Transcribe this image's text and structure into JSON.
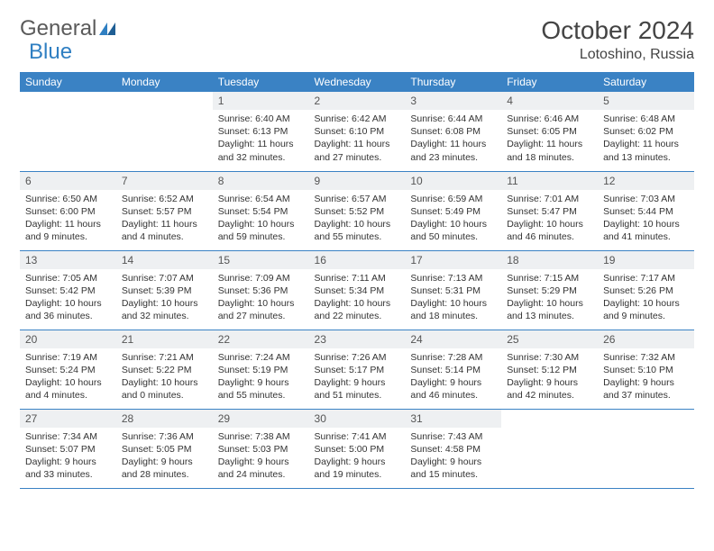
{
  "logo": {
    "textA": "General",
    "textB": "Blue"
  },
  "title": {
    "month": "October 2024",
    "location": "Lotoshino, Russia"
  },
  "colors": {
    "header_bg": "#3a82c4",
    "header_text": "#ffffff",
    "daynum_bg": "#eef0f2",
    "border": "#3a82c4",
    "logo_gray": "#5a5a5a",
    "logo_blue": "#2f7fc2"
  },
  "weekdays": [
    "Sunday",
    "Monday",
    "Tuesday",
    "Wednesday",
    "Thursday",
    "Friday",
    "Saturday"
  ],
  "weeks": [
    [
      {
        "n": "",
        "sr": "",
        "ss": "",
        "dl": ""
      },
      {
        "n": "",
        "sr": "",
        "ss": "",
        "dl": ""
      },
      {
        "n": "1",
        "sr": "Sunrise: 6:40 AM",
        "ss": "Sunset: 6:13 PM",
        "dl": "Daylight: 11 hours and 32 minutes."
      },
      {
        "n": "2",
        "sr": "Sunrise: 6:42 AM",
        "ss": "Sunset: 6:10 PM",
        "dl": "Daylight: 11 hours and 27 minutes."
      },
      {
        "n": "3",
        "sr": "Sunrise: 6:44 AM",
        "ss": "Sunset: 6:08 PM",
        "dl": "Daylight: 11 hours and 23 minutes."
      },
      {
        "n": "4",
        "sr": "Sunrise: 6:46 AM",
        "ss": "Sunset: 6:05 PM",
        "dl": "Daylight: 11 hours and 18 minutes."
      },
      {
        "n": "5",
        "sr": "Sunrise: 6:48 AM",
        "ss": "Sunset: 6:02 PM",
        "dl": "Daylight: 11 hours and 13 minutes."
      }
    ],
    [
      {
        "n": "6",
        "sr": "Sunrise: 6:50 AM",
        "ss": "Sunset: 6:00 PM",
        "dl": "Daylight: 11 hours and 9 minutes."
      },
      {
        "n": "7",
        "sr": "Sunrise: 6:52 AM",
        "ss": "Sunset: 5:57 PM",
        "dl": "Daylight: 11 hours and 4 minutes."
      },
      {
        "n": "8",
        "sr": "Sunrise: 6:54 AM",
        "ss": "Sunset: 5:54 PM",
        "dl": "Daylight: 10 hours and 59 minutes."
      },
      {
        "n": "9",
        "sr": "Sunrise: 6:57 AM",
        "ss": "Sunset: 5:52 PM",
        "dl": "Daylight: 10 hours and 55 minutes."
      },
      {
        "n": "10",
        "sr": "Sunrise: 6:59 AM",
        "ss": "Sunset: 5:49 PM",
        "dl": "Daylight: 10 hours and 50 minutes."
      },
      {
        "n": "11",
        "sr": "Sunrise: 7:01 AM",
        "ss": "Sunset: 5:47 PM",
        "dl": "Daylight: 10 hours and 46 minutes."
      },
      {
        "n": "12",
        "sr": "Sunrise: 7:03 AM",
        "ss": "Sunset: 5:44 PM",
        "dl": "Daylight: 10 hours and 41 minutes."
      }
    ],
    [
      {
        "n": "13",
        "sr": "Sunrise: 7:05 AM",
        "ss": "Sunset: 5:42 PM",
        "dl": "Daylight: 10 hours and 36 minutes."
      },
      {
        "n": "14",
        "sr": "Sunrise: 7:07 AM",
        "ss": "Sunset: 5:39 PM",
        "dl": "Daylight: 10 hours and 32 minutes."
      },
      {
        "n": "15",
        "sr": "Sunrise: 7:09 AM",
        "ss": "Sunset: 5:36 PM",
        "dl": "Daylight: 10 hours and 27 minutes."
      },
      {
        "n": "16",
        "sr": "Sunrise: 7:11 AM",
        "ss": "Sunset: 5:34 PM",
        "dl": "Daylight: 10 hours and 22 minutes."
      },
      {
        "n": "17",
        "sr": "Sunrise: 7:13 AM",
        "ss": "Sunset: 5:31 PM",
        "dl": "Daylight: 10 hours and 18 minutes."
      },
      {
        "n": "18",
        "sr": "Sunrise: 7:15 AM",
        "ss": "Sunset: 5:29 PM",
        "dl": "Daylight: 10 hours and 13 minutes."
      },
      {
        "n": "19",
        "sr": "Sunrise: 7:17 AM",
        "ss": "Sunset: 5:26 PM",
        "dl": "Daylight: 10 hours and 9 minutes."
      }
    ],
    [
      {
        "n": "20",
        "sr": "Sunrise: 7:19 AM",
        "ss": "Sunset: 5:24 PM",
        "dl": "Daylight: 10 hours and 4 minutes."
      },
      {
        "n": "21",
        "sr": "Sunrise: 7:21 AM",
        "ss": "Sunset: 5:22 PM",
        "dl": "Daylight: 10 hours and 0 minutes."
      },
      {
        "n": "22",
        "sr": "Sunrise: 7:24 AM",
        "ss": "Sunset: 5:19 PM",
        "dl": "Daylight: 9 hours and 55 minutes."
      },
      {
        "n": "23",
        "sr": "Sunrise: 7:26 AM",
        "ss": "Sunset: 5:17 PM",
        "dl": "Daylight: 9 hours and 51 minutes."
      },
      {
        "n": "24",
        "sr": "Sunrise: 7:28 AM",
        "ss": "Sunset: 5:14 PM",
        "dl": "Daylight: 9 hours and 46 minutes."
      },
      {
        "n": "25",
        "sr": "Sunrise: 7:30 AM",
        "ss": "Sunset: 5:12 PM",
        "dl": "Daylight: 9 hours and 42 minutes."
      },
      {
        "n": "26",
        "sr": "Sunrise: 7:32 AM",
        "ss": "Sunset: 5:10 PM",
        "dl": "Daylight: 9 hours and 37 minutes."
      }
    ],
    [
      {
        "n": "27",
        "sr": "Sunrise: 7:34 AM",
        "ss": "Sunset: 5:07 PM",
        "dl": "Daylight: 9 hours and 33 minutes."
      },
      {
        "n": "28",
        "sr": "Sunrise: 7:36 AM",
        "ss": "Sunset: 5:05 PM",
        "dl": "Daylight: 9 hours and 28 minutes."
      },
      {
        "n": "29",
        "sr": "Sunrise: 7:38 AM",
        "ss": "Sunset: 5:03 PM",
        "dl": "Daylight: 9 hours and 24 minutes."
      },
      {
        "n": "30",
        "sr": "Sunrise: 7:41 AM",
        "ss": "Sunset: 5:00 PM",
        "dl": "Daylight: 9 hours and 19 minutes."
      },
      {
        "n": "31",
        "sr": "Sunrise: 7:43 AM",
        "ss": "Sunset: 4:58 PM",
        "dl": "Daylight: 9 hours and 15 minutes."
      },
      {
        "n": "",
        "sr": "",
        "ss": "",
        "dl": ""
      },
      {
        "n": "",
        "sr": "",
        "ss": "",
        "dl": ""
      }
    ]
  ]
}
